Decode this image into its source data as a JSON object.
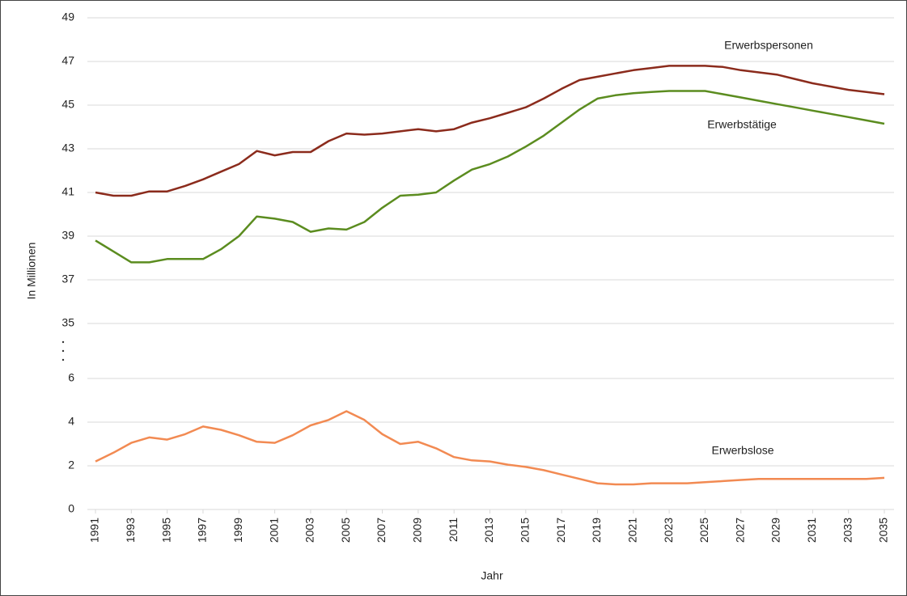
{
  "chart_data": {
    "type": "line",
    "xlabel": "Jahr",
    "ylabel": "In Millionen",
    "x": [
      1991,
      1992,
      1993,
      1994,
      1995,
      1996,
      1997,
      1998,
      1999,
      2000,
      2001,
      2002,
      2003,
      2004,
      2005,
      2006,
      2007,
      2008,
      2009,
      2010,
      2011,
      2012,
      2013,
      2014,
      2015,
      2016,
      2017,
      2018,
      2019,
      2020,
      2021,
      2022,
      2023,
      2024,
      2025,
      2026,
      2027,
      2028,
      2029,
      2030,
      2031,
      2032,
      2033,
      2034,
      2035
    ],
    "xlim": [
      1991,
      2035
    ],
    "xticks": [
      1991,
      1993,
      1995,
      1997,
      1999,
      2001,
      2003,
      2005,
      2007,
      2009,
      2011,
      2013,
      2015,
      2017,
      2019,
      2021,
      2023,
      2025,
      2027,
      2029,
      2031,
      2033,
      2035
    ],
    "ylim": [
      0,
      49
    ],
    "y_break": [
      6,
      35
    ],
    "yticks": [
      0,
      2,
      4,
      6,
      35,
      37,
      39,
      41,
      43,
      45,
      47,
      49
    ],
    "grid": true,
    "series": [
      {
        "name": "Erwerbspersonen",
        "color": "#8b2b1c",
        "values": [
          41.0,
          40.85,
          40.85,
          41.05,
          41.05,
          41.3,
          41.6,
          41.95,
          42.3,
          42.9,
          42.7,
          42.85,
          42.85,
          43.35,
          43.7,
          43.65,
          43.7,
          43.8,
          43.9,
          43.8,
          43.9,
          44.2,
          44.4,
          44.65,
          44.9,
          45.3,
          45.75,
          46.15,
          46.3,
          46.45,
          46.6,
          46.7,
          46.8,
          46.8,
          46.8,
          46.75,
          46.6,
          46.5,
          46.4,
          46.2,
          46.0,
          45.85,
          45.7,
          45.6,
          45.5
        ]
      },
      {
        "name": "Erwerbstätige",
        "color": "#5b8c1f",
        "values": [
          38.8,
          38.3,
          37.8,
          37.8,
          37.95,
          37.95,
          37.95,
          38.4,
          39.0,
          39.9,
          39.8,
          39.65,
          39.2,
          39.35,
          39.3,
          39.65,
          40.3,
          40.85,
          40.9,
          41.0,
          41.55,
          42.05,
          42.3,
          42.65,
          43.1,
          43.6,
          44.2,
          44.8,
          45.3,
          45.45,
          45.55,
          45.6,
          45.65,
          45.65,
          45.65,
          45.5,
          45.35,
          45.2,
          45.05,
          44.9,
          44.75,
          44.6,
          44.45,
          44.3,
          44.15
        ]
      },
      {
        "name": "Erwerbslose",
        "color": "#f28a52",
        "values": [
          2.2,
          2.6,
          3.05,
          3.3,
          3.2,
          3.45,
          3.8,
          3.65,
          3.4,
          3.1,
          3.05,
          3.4,
          3.85,
          4.1,
          4.5,
          4.1,
          3.45,
          3.0,
          3.1,
          2.8,
          2.4,
          2.25,
          2.2,
          2.05,
          1.95,
          1.8,
          1.6,
          1.4,
          1.2,
          1.15,
          1.15,
          1.2,
          1.2,
          1.2,
          1.25,
          1.3,
          1.35,
          1.4,
          1.4,
          1.4,
          1.4,
          1.4,
          1.4,
          1.4,
          1.45
        ]
      }
    ]
  }
}
